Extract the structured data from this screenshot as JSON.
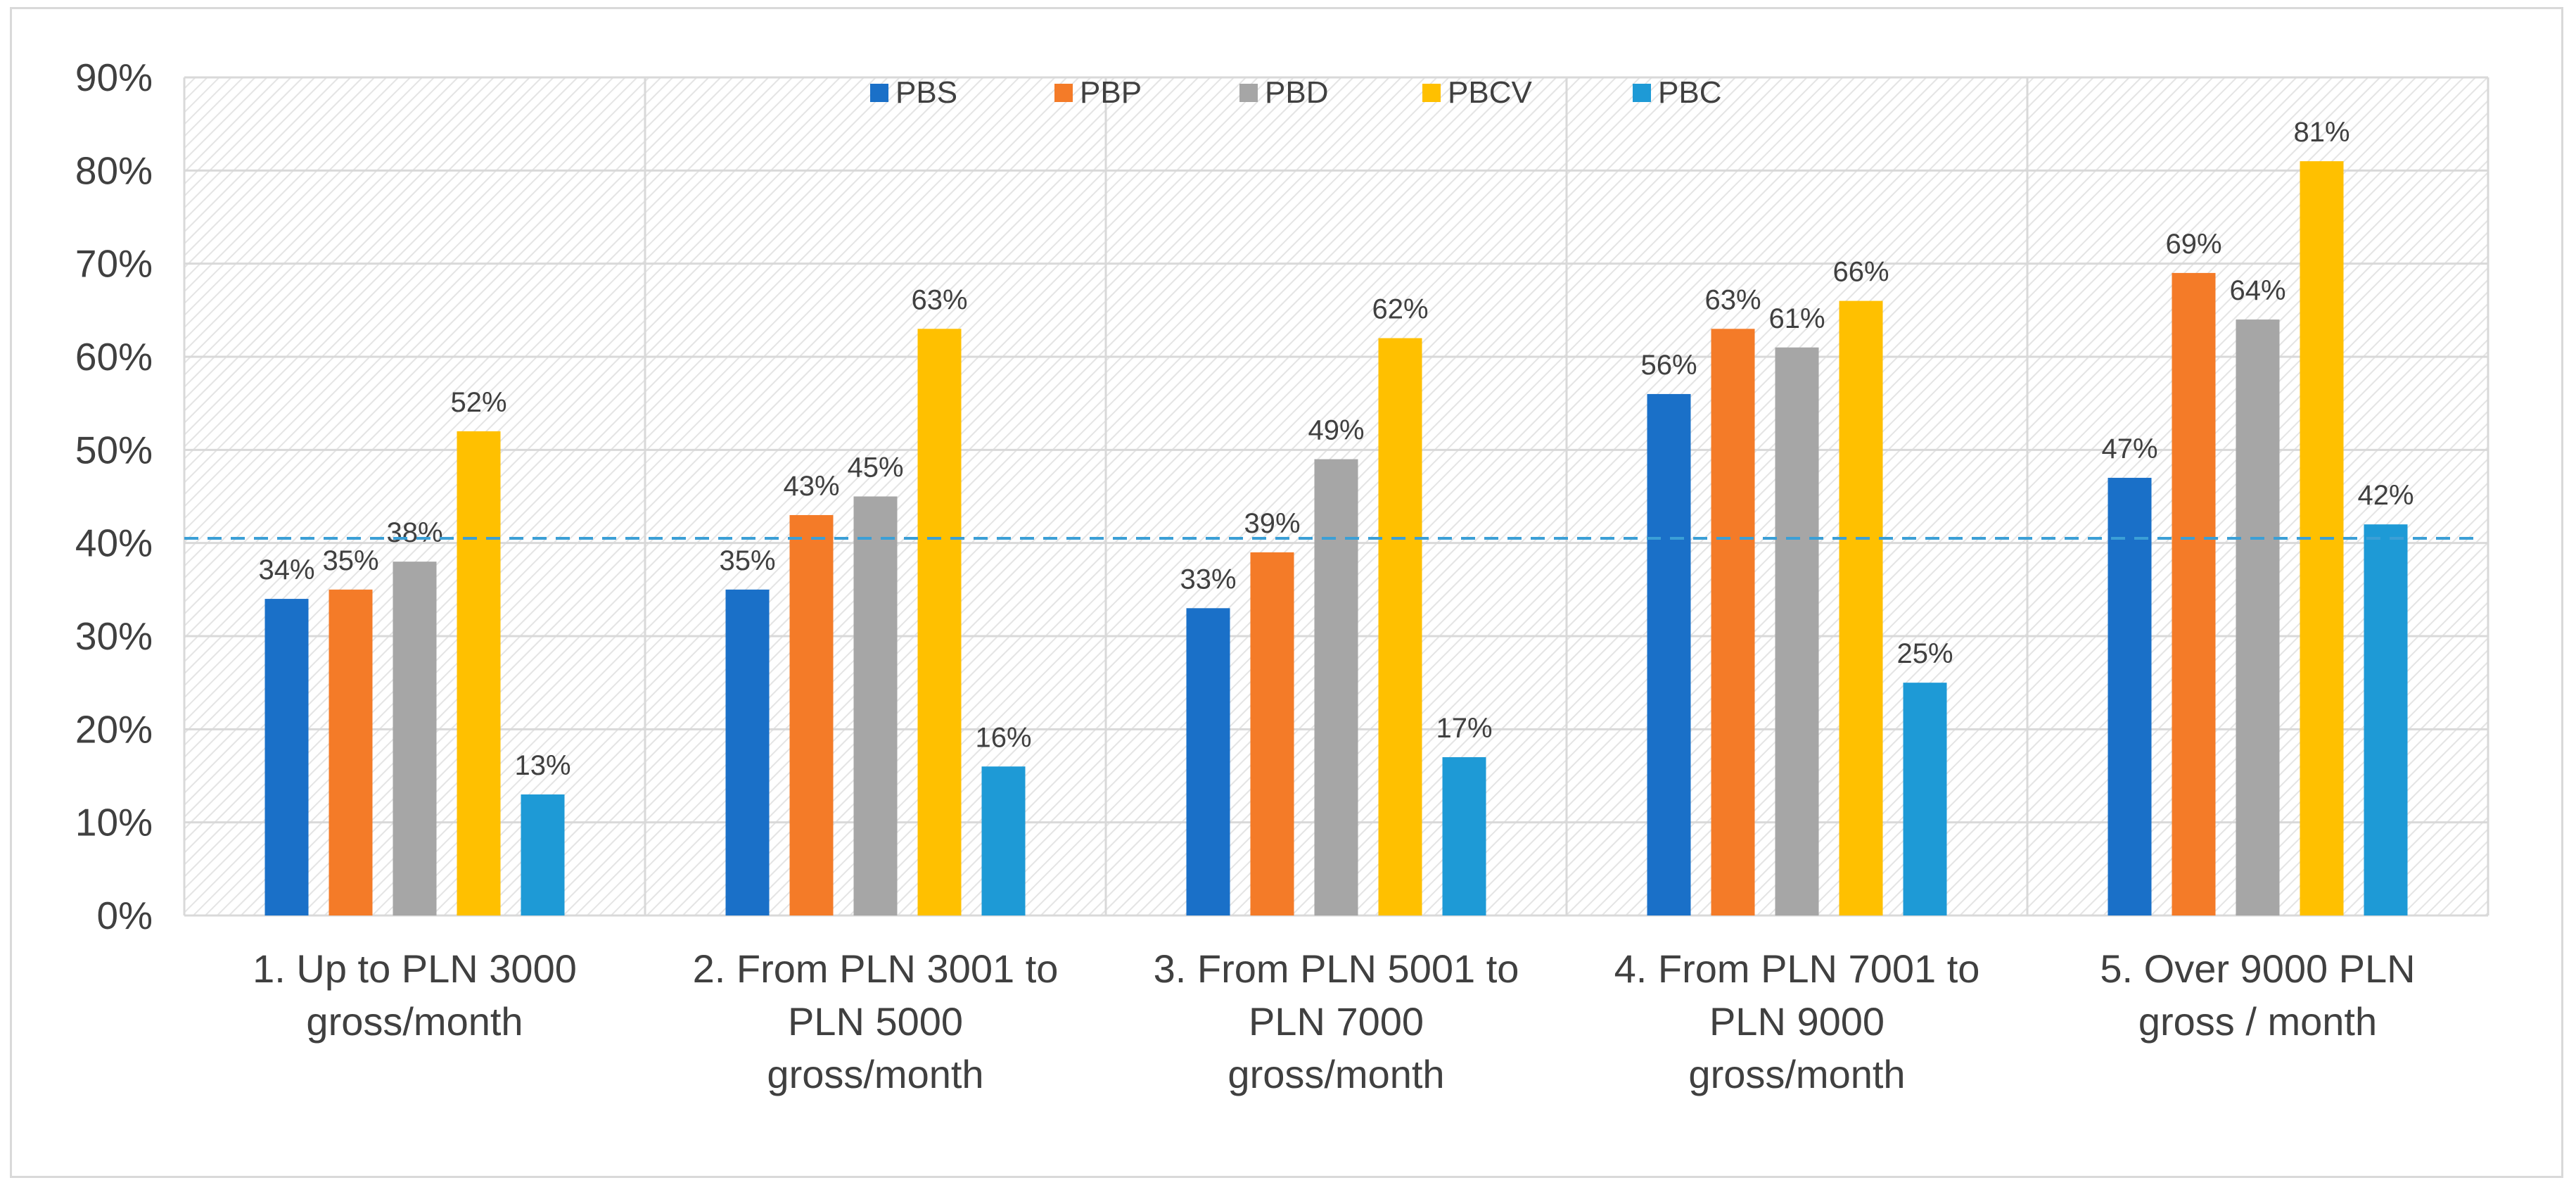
{
  "chart_data": {
    "type": "bar",
    "title": "",
    "xlabel": "",
    "ylabel": "",
    "ylim": [
      0,
      90
    ],
    "y_tick_values": [
      0,
      10,
      20,
      30,
      40,
      50,
      60,
      70,
      80,
      90
    ],
    "y_tick_labels": [
      "0%",
      "10%",
      "20%",
      "30%",
      "40%",
      "50%",
      "60%",
      "70%",
      "80%",
      "90%"
    ],
    "grid": true,
    "legend_position": "top",
    "categories": [
      [
        "1. Up to PLN 3000",
        "gross/month"
      ],
      [
        "2. From PLN 3001 to",
        "PLN 5000",
        "gross/month"
      ],
      [
        "3. From PLN 5001 to",
        "PLN 7000",
        "gross/month"
      ],
      [
        "4. From PLN 7001 to",
        "PLN 9000",
        "gross/month"
      ],
      [
        "5. Over 9000 PLN",
        "gross / month"
      ]
    ],
    "series": [
      {
        "name": "PBS",
        "color": "#1a70c8",
        "values": [
          34,
          35,
          33,
          56,
          47
        ],
        "labels": [
          "34%",
          "35%",
          "33%",
          "56%",
          "47%"
        ]
      },
      {
        "name": "PBP",
        "color": "#f47b28",
        "values": [
          35,
          43,
          39,
          63,
          69
        ],
        "labels": [
          "35%",
          "43%",
          "39%",
          "63%",
          "69%"
        ]
      },
      {
        "name": "PBD",
        "color": "#a6a6a6",
        "values": [
          38,
          45,
          49,
          61,
          64
        ],
        "labels": [
          "38%",
          "45%",
          "49%",
          "61%",
          "64%"
        ]
      },
      {
        "name": "PBCV",
        "color": "#ffc000",
        "values": [
          52,
          63,
          62,
          66,
          81
        ],
        "labels": [
          "52%",
          "63%",
          "62%",
          "66%",
          "81%"
        ]
      },
      {
        "name": "PBC",
        "color": "#1e9ad6",
        "values": [
          13,
          16,
          17,
          25,
          42
        ],
        "labels": [
          "13%",
          "16%",
          "17%",
          "25%",
          "42%"
        ]
      }
    ],
    "reference_line": {
      "value": 40.5,
      "style": "dashed",
      "color": "#3b9fd6"
    }
  }
}
